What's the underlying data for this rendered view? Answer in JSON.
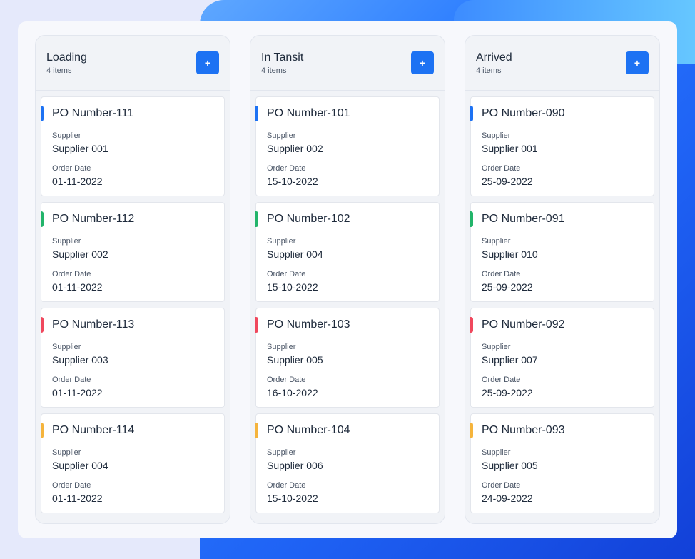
{
  "accent_color": "#1d72f3",
  "status_colors": {
    "blue": "#1d72f3",
    "green": "#22b46a",
    "red": "#f0485d",
    "yellow": "#f5b43c"
  },
  "field_labels": {
    "supplier": "Supplier",
    "order_date": "Order Date"
  },
  "add_button_icon": "plus-icon",
  "columns": [
    {
      "title": "Loading",
      "count": "4 items",
      "add_label": "+",
      "cards": [
        {
          "po": "PO Number-111",
          "supplier": "Supplier 001",
          "date": "01-11-2022",
          "color": "blue"
        },
        {
          "po": "PO Number-112",
          "supplier": "Supplier 002",
          "date": "01-11-2022",
          "color": "green"
        },
        {
          "po": "PO Number-113",
          "supplier": "Supplier 003",
          "date": "01-11-2022",
          "color": "red"
        },
        {
          "po": "PO Number-114",
          "supplier": "Supplier 004",
          "date": "01-11-2022",
          "color": "yellow"
        }
      ]
    },
    {
      "title": "In Tansit",
      "count": "4 items",
      "add_label": "+",
      "cards": [
        {
          "po": "PO Number-101",
          "supplier": "Supplier 002",
          "date": "15-10-2022",
          "color": "blue"
        },
        {
          "po": "PO Number-102",
          "supplier": "Supplier 004",
          "date": "15-10-2022",
          "color": "green"
        },
        {
          "po": "PO Number-103",
          "supplier": "Supplier 005",
          "date": "16-10-2022",
          "color": "red"
        },
        {
          "po": "PO Number-104",
          "supplier": "Supplier 006",
          "date": "15-10-2022",
          "color": "yellow"
        }
      ]
    },
    {
      "title": "Arrived",
      "count": "4 items",
      "add_label": "+",
      "cards": [
        {
          "po": "PO Number-090",
          "supplier": "Supplier 001",
          "date": "25-09-2022",
          "color": "blue"
        },
        {
          "po": "PO Number-091",
          "supplier": "Supplier 010",
          "date": "25-09-2022",
          "color": "green"
        },
        {
          "po": "PO Number-092",
          "supplier": "Supplier 007",
          "date": "25-09-2022",
          "color": "red"
        },
        {
          "po": "PO Number-093",
          "supplier": "Supplier 005",
          "date": "24-09-2022",
          "color": "yellow"
        }
      ]
    }
  ]
}
